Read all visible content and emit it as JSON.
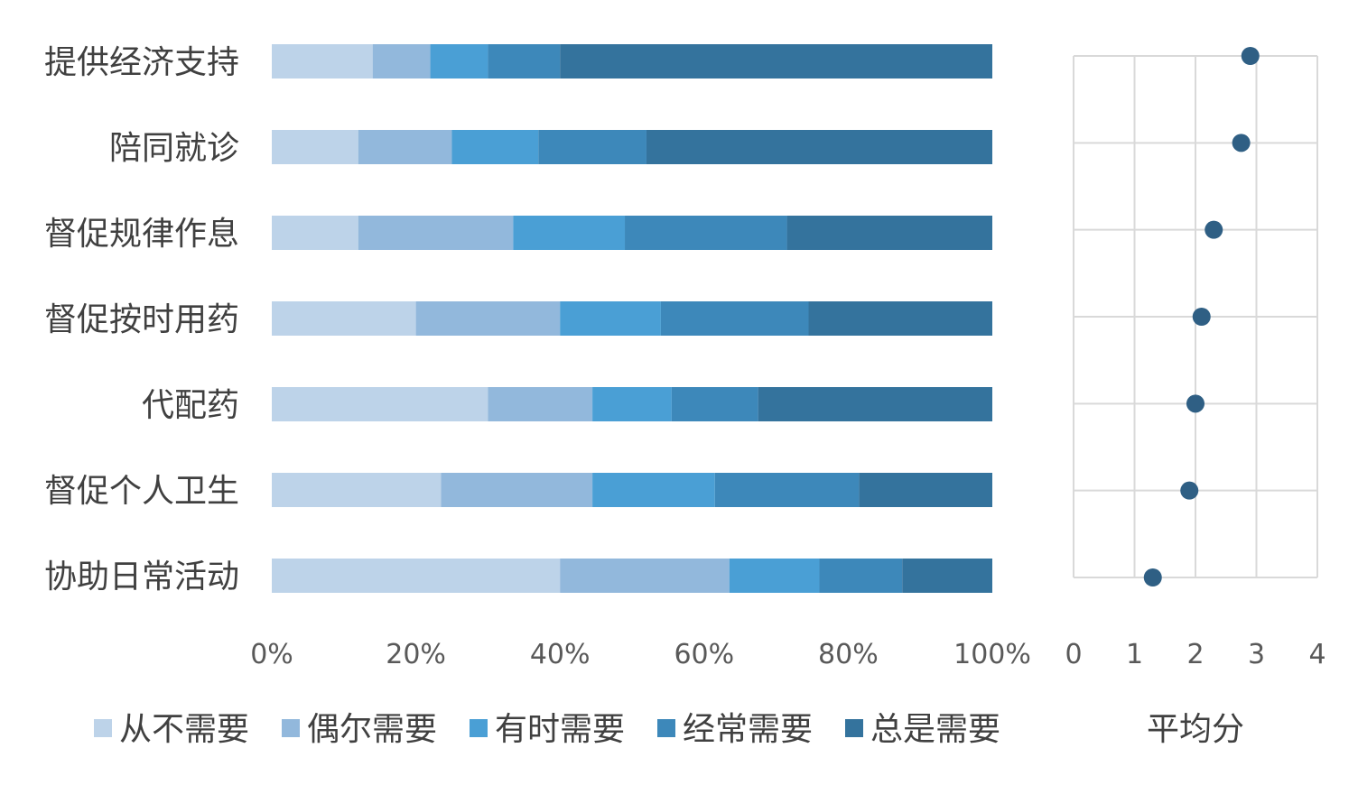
{
  "chart_data": [
    {
      "type": "bar",
      "orientation": "horizontal",
      "stacked": "percent",
      "categories": [
        "提供经济支持",
        "陪同就诊",
        "督促规律作息",
        "督促按时用药",
        "代配药",
        "督促个人卫生",
        "协助日常活动"
      ],
      "series": [
        {
          "name": "从不需要",
          "color": "#bdd3e9",
          "values": [
            14,
            12,
            12,
            20,
            30,
            23.5,
            40
          ]
        },
        {
          "name": "偶尔需要",
          "color": "#92b8dc",
          "values": [
            8,
            13,
            21.5,
            20,
            14.5,
            21,
            23.5
          ]
        },
        {
          "name": "有时需要",
          "color": "#4a9fd5",
          "values": [
            8,
            12,
            15.5,
            14,
            11,
            17,
            12.5
          ]
        },
        {
          "name": "经常需要",
          "color": "#3d88ba",
          "values": [
            10,
            15,
            22.5,
            20.5,
            12,
            20,
            11.5
          ]
        },
        {
          "name": "总是需要",
          "color": "#34739d",
          "values": [
            60,
            48,
            28.5,
            25.5,
            32.5,
            18.5,
            12.5
          ]
        }
      ],
      "xticks": [
        "0%",
        "20%",
        "40%",
        "60%",
        "80%",
        "100%"
      ],
      "xlim": [
        0,
        100
      ],
      "legend_position": "bottom",
      "grid": false
    },
    {
      "type": "scatter",
      "categories": [
        "提供经济支持",
        "陪同就诊",
        "督促规律作息",
        "督促按时用药",
        "代配药",
        "督促个人卫生",
        "协助日常活动"
      ],
      "values": [
        2.9,
        2.75,
        2.3,
        2.1,
        2.0,
        1.9,
        1.3
      ],
      "color": "#2f5f84",
      "xlabel": "平均分",
      "xticks": [
        "0",
        "1",
        "2",
        "3",
        "4"
      ],
      "xlim": [
        0,
        4
      ],
      "grid": true
    }
  ]
}
